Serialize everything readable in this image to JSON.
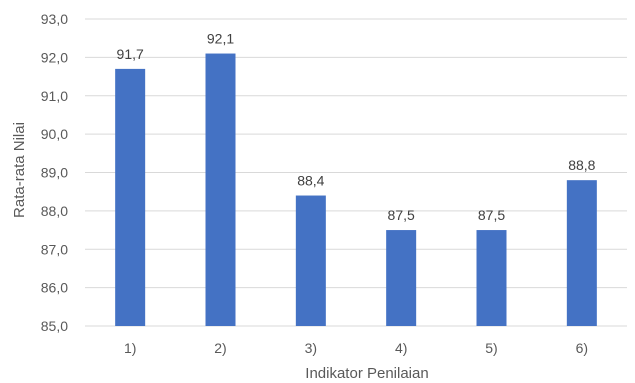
{
  "colors": {
    "bar": "#4472C4",
    "grid": "#D9D9D9",
    "axis_text": "#595959",
    "label_text": "#404040",
    "background": "#FFFFFF"
  },
  "chart_data": {
    "type": "bar",
    "title": "",
    "xlabel": "Indikator Penilaian",
    "ylabel": "Rata-rata Nilai",
    "categories": [
      "1)",
      "2)",
      "3)",
      "4)",
      "5)",
      "6)"
    ],
    "values": [
      91.7,
      92.1,
      88.4,
      87.5,
      87.5,
      88.8
    ],
    "value_labels": [
      "91,7",
      "92,1",
      "88,4",
      "87,5",
      "87,5",
      "88,8"
    ],
    "ylim": [
      85.0,
      93.0
    ],
    "yticks": [
      85.0,
      86.0,
      87.0,
      88.0,
      89.0,
      90.0,
      91.0,
      92.0,
      93.0
    ],
    "ytick_labels": [
      "85,0",
      "86,0",
      "87,0",
      "88,0",
      "89,0",
      "90,0",
      "91,0",
      "92,0",
      "93,0"
    ],
    "grid": true,
    "legend": "none"
  }
}
